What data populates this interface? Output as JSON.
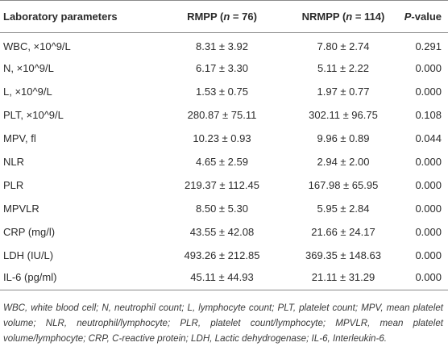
{
  "table": {
    "headers": {
      "parameter": "Laboratory parameters",
      "rmpp_prefix": "RMPP (",
      "rmpp_n": "n",
      "rmpp_suffix": " = 76)",
      "nrmpp_prefix": "NRMPP (",
      "nrmpp_n": "n",
      "nrmpp_suffix": " = 114)",
      "pvalue_p": "P",
      "pvalue_suffix": "-value"
    },
    "rows": [
      {
        "parameter": "WBC, ×10^9/L",
        "rmpp": "8.31 ± 3.92",
        "nrmpp": "7.80 ± 2.74",
        "p": "0.291"
      },
      {
        "parameter": "N, ×10^9/L",
        "rmpp": "6.17 ± 3.30",
        "nrmpp": "5.11 ± 2.22",
        "p": "0.000"
      },
      {
        "parameter": "L, ×10^9/L",
        "rmpp": "1.53 ± 0.75",
        "nrmpp": "1.97 ± 0.77",
        "p": "0.000"
      },
      {
        "parameter": "PLT, ×10^9/L",
        "rmpp": "280.87 ± 75.11",
        "nrmpp": "302.11 ± 96.75",
        "p": "0.108"
      },
      {
        "parameter": "MPV, fl",
        "rmpp": "10.23 ± 0.93",
        "nrmpp": "9.96 ± 0.89",
        "p": "0.044"
      },
      {
        "parameter": "NLR",
        "rmpp": "4.65 ± 2.59",
        "nrmpp": "2.94 ± 2.00",
        "p": "0.000"
      },
      {
        "parameter": "PLR",
        "rmpp": "219.37 ± 112.45",
        "nrmpp": "167.98 ± 65.95",
        "p": "0.000"
      },
      {
        "parameter": "MPVLR",
        "rmpp": "8.50 ± 5.30",
        "nrmpp": "5.95 ± 2.84",
        "p": "0.000"
      },
      {
        "parameter": "CRP (mg/l)",
        "rmpp": "43.55 ± 42.08",
        "nrmpp": "21.66 ± 24.17",
        "p": "0.000"
      },
      {
        "parameter": "LDH (IU/L)",
        "rmpp": "493.26 ± 212.85",
        "nrmpp": "369.35 ± 148.63",
        "p": "0.000"
      },
      {
        "parameter": "IL-6 (pg/ml)",
        "rmpp": "45.11 ± 44.93",
        "nrmpp": "21.11 ± 31.29",
        "p": "0.000"
      }
    ]
  },
  "footnote": "WBC, white blood cell; N, neutrophil count; L, lymphocyte count; PLT, platelet count; MPV, mean platelet volume; NLR, neutrophil/lymphocyte; PLR, platelet count/lymphocyte; MPVLR, mean platelet volume/lymphocyte; CRP, C-reactive protein; LDH, Lactic dehydrogenase; IL-6, Interleukin-6."
}
